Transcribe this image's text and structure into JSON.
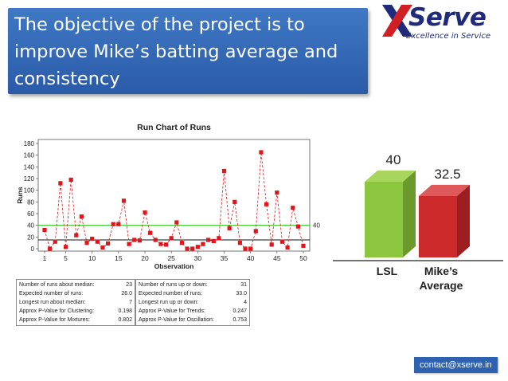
{
  "slide": {
    "title": "The objective of the project is to improve Mike’s batting average and consistency",
    "contact": "contact@xserve.in"
  },
  "logo": {
    "word": "Serve",
    "tagline": "Excellence in Service"
  },
  "colors": {
    "title_bg": "#2f66b8",
    "marker": "#e0161b",
    "median_line": "#2ecc1e",
    "lsl_bar": "#8cc63e",
    "avg_bar": "#cc2a2a"
  },
  "chart_data": [
    {
      "type": "line",
      "title": "Run Chart of Runs",
      "xlabel": "Observation",
      "ylabel": "Runs",
      "ylim": [
        0,
        180
      ],
      "yticks": [
        0,
        20,
        40,
        60,
        80,
        100,
        120,
        140,
        160,
        180
      ],
      "xticks": [
        1,
        5,
        10,
        15,
        20,
        25,
        30,
        35,
        40,
        45,
        50
      ],
      "x": [
        1,
        2,
        3,
        4,
        5,
        6,
        7,
        8,
        9,
        10,
        11,
        12,
        13,
        14,
        15,
        16,
        17,
        18,
        19,
        20,
        21,
        22,
        23,
        24,
        25,
        26,
        27,
        28,
        29,
        30,
        31,
        32,
        33,
        34,
        35,
        36,
        37,
        38,
        39,
        40,
        41,
        42,
        43,
        44,
        45,
        46,
        47,
        48,
        49,
        50
      ],
      "values": [
        32,
        0,
        12,
        112,
        3,
        118,
        23,
        55,
        10,
        17,
        12,
        2,
        9,
        42,
        42,
        82,
        8,
        15,
        14,
        62,
        27,
        15,
        8,
        7,
        18,
        45,
        10,
        0,
        0,
        3,
        8,
        15,
        13,
        18,
        133,
        35,
        80,
        10,
        0,
        0,
        30,
        165,
        76,
        7,
        96,
        12,
        2,
        70,
        38,
        5
      ],
      "median_line": 15,
      "reference_line": {
        "value": 40,
        "label": "40"
      },
      "grid": false
    },
    {
      "type": "bar",
      "categories": [
        "LSL",
        "Mike’s Average"
      ],
      "category_lines": [
        [
          "LSL"
        ],
        [
          "Mike’s",
          "Average"
        ]
      ],
      "values": [
        40,
        32.5
      ],
      "value_labels": [
        "40",
        "32.5"
      ],
      "ylim": [
        0,
        45
      ]
    }
  ],
  "stats": {
    "left": [
      {
        "label": "Number of runs about median:",
        "value": "23"
      },
      {
        "label": "Expected number of runs:",
        "value": "26.0"
      },
      {
        "label": "Longest run about median:",
        "value": "7"
      },
      {
        "label": "Approx P-Value for Clustering:",
        "value": "0.198"
      },
      {
        "label": "Approx P-Value for Mixtures:",
        "value": "0.802"
      }
    ],
    "right": [
      {
        "label": "Number of runs up or down:",
        "value": "31"
      },
      {
        "label": "Expected number of runs:",
        "value": "33.0"
      },
      {
        "label": "Longest run up or down:",
        "value": "4"
      },
      {
        "label": "Approx P-Value for Trends:",
        "value": "0.247"
      },
      {
        "label": "Approx P-Value for Oscillation:",
        "value": "0.753"
      }
    ]
  }
}
